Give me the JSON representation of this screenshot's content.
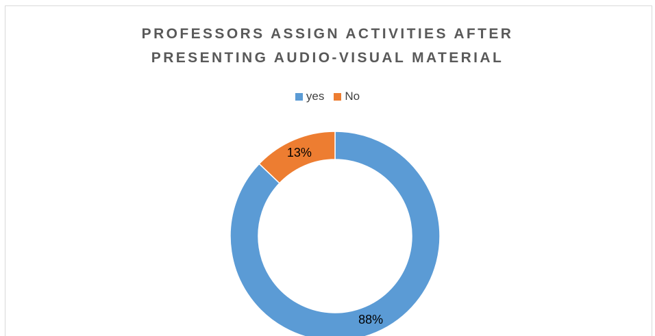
{
  "chart_data": {
    "type": "pie",
    "variant": "doughnut",
    "title_lines": [
      "PROFESSORS ASSIGN ACTIVITIES AFTER",
      "PRESENTING AUDIO-VISUAL MATERIAL"
    ],
    "legend_position": "top",
    "slices": [
      {
        "name": "yes",
        "value": 88,
        "label": "88%",
        "color": "#5b9bd5"
      },
      {
        "name": "No",
        "value": 13,
        "label": "13%",
        "color": "#ed7d31"
      }
    ]
  }
}
